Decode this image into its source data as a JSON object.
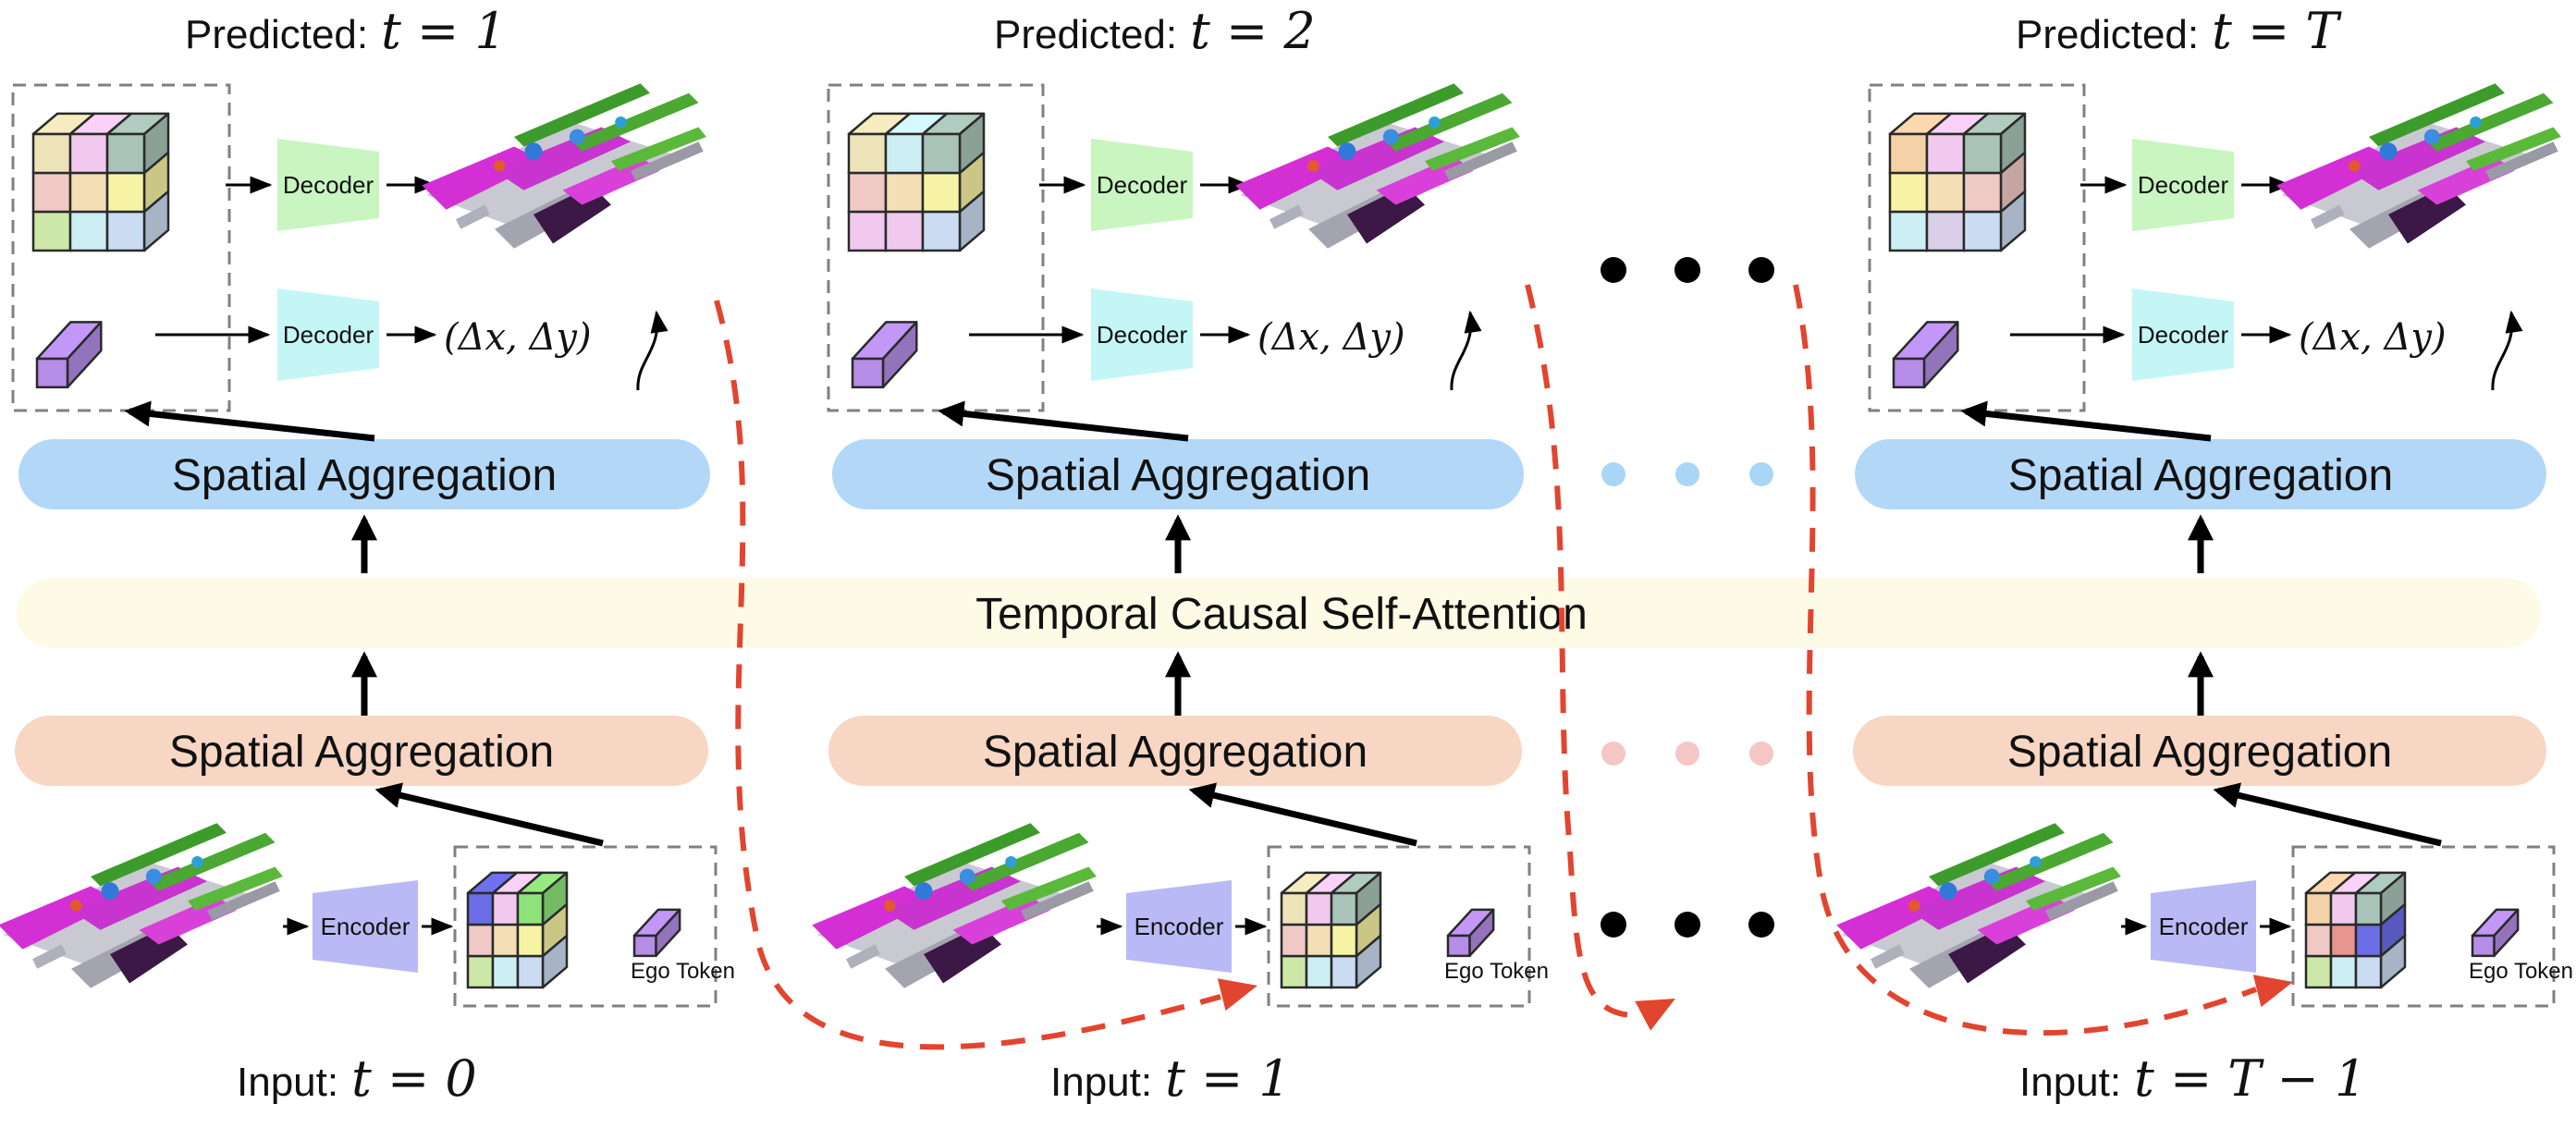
{
  "predicted_label": "Predicted:",
  "input_label": "Input:",
  "columns": [
    {
      "pred_t": "t = 1",
      "input_t": "t = 0",
      "token_colors": [
        "#ede3b8",
        "#f1c9ee",
        "#a9c3b8",
        "#f0c9c6",
        "#f4deb6",
        "#f6f3a4",
        "#cde7a8",
        "#cdeff4",
        "#cbdcf2"
      ],
      "input_colors": [
        "#6b6ee6",
        "#f1c9ee",
        "#8fe27a",
        "#f0c9c6",
        "#f4deb6",
        "#f6f3a4",
        "#cde7a8",
        "#cdeff4",
        "#cbdcf2"
      ]
    },
    {
      "pred_t": "t = 2",
      "input_t": "t = 1",
      "token_colors": [
        "#ede3b8",
        "#cdeff4",
        "#a9c3b8",
        "#f0c9c6",
        "#f4deb6",
        "#f6f3a4",
        "#f1c9ee",
        "#f1c9ee",
        "#cbdcf2"
      ],
      "input_colors": [
        "#ede3b8",
        "#f1c9ee",
        "#a9c3b8",
        "#f0c9c6",
        "#f4deb6",
        "#f6f3a4",
        "#cde7a8",
        "#cdeff4",
        "#cbdcf2"
      ]
    },
    {
      "pred_t": "t = T",
      "input_t": "t = T − 1",
      "token_colors": [
        "#f4d1a6",
        "#f1c9ee",
        "#a9c3b8",
        "#f6f3a4",
        "#f4deb6",
        "#f0c9c6",
        "#cdeff4",
        "#d9cfe8",
        "#cbdcf2"
      ],
      "input_colors": [
        "#f4d1a6",
        "#f1c9ee",
        "#a9c3b8",
        "#f0c9c6",
        "#e8958f",
        "#6b6ee6",
        "#cde7a8",
        "#cdeff4",
        "#cbdcf2"
      ]
    }
  ],
  "decoder_label": "Decoder",
  "encoder_label": "Encoder",
  "ego_token_label": "Ego Token",
  "delta_label": "(Δx, Δy)",
  "spatial_aggregation_label": "Spatial Aggregation",
  "temporal_label": "Temporal Causal Self-Attention",
  "colors": {
    "decoder_occ": "#c8f5c0",
    "decoder_ego": "#c5f6f6",
    "encoder": "#b9b9f5",
    "ego_token": "#b58ce6",
    "spatial_top": "#b3d8f7",
    "spatial_bottom": "#f7d6c4",
    "temporal": "#fdfbe6",
    "dashed_arrow": "#e2452f",
    "dots_top": "#aad6f5",
    "dots_bottom": "#f5c6c6"
  }
}
